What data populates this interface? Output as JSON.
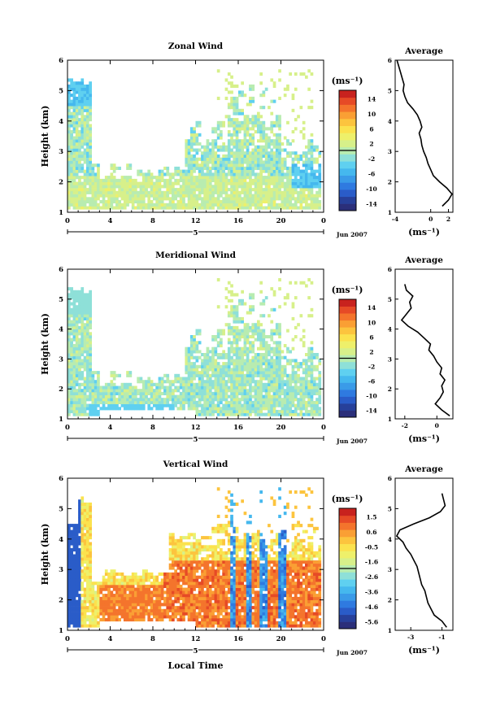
{
  "chart_data": [
    {
      "type": "heatmap",
      "title": "Zonal Wind",
      "ylabel": "Height (km)",
      "ylim": [
        1,
        6
      ],
      "xlim": [
        0,
        24
      ],
      "x_ticks": [
        "0",
        "4",
        "8",
        "12",
        "16",
        "20",
        "0"
      ],
      "y_ticks": [
        "1",
        "2",
        "3",
        "4",
        "5",
        "6"
      ],
      "day_label": "5",
      "date_label": "Jun 2007",
      "colorbar": {
        "unit": "(ms⁻¹)",
        "ticks": [
          "14",
          "10",
          "6",
          "2",
          "-2",
          "-6",
          "-10",
          "-14"
        ],
        "range": [
          -16,
          16
        ]
      },
      "profile": {
        "title": "Average",
        "xlabel": "(ms⁻¹)",
        "x_ticks": [
          "-4",
          "0",
          "2"
        ],
        "xlim": [
          -4,
          2.5
        ],
        "height": [
          1.2,
          1.4,
          1.6,
          1.8,
          2.0,
          2.2,
          2.4,
          2.6,
          2.8,
          3.0,
          3.2,
          3.4,
          3.6,
          3.8,
          4.0,
          4.2,
          4.4,
          4.6,
          4.8,
          5.0,
          5.2,
          5.4,
          5.6,
          5.8,
          6.0
        ],
        "value": [
          1.3,
          2.0,
          2.4,
          1.8,
          1.0,
          0.3,
          0.0,
          -0.3,
          -0.5,
          -0.8,
          -1.0,
          -1.1,
          -1.3,
          -1.0,
          -1.2,
          -1.5,
          -2.0,
          -2.6,
          -2.9,
          -3.1,
          -3.0,
          -3.2,
          -3.4,
          -3.6,
          -3.8
        ]
      },
      "pattern": "zonal"
    },
    {
      "type": "heatmap",
      "title": "Meridional Wind",
      "ylabel": "Height (km)",
      "ylim": [
        1,
        6
      ],
      "xlim": [
        0,
        24
      ],
      "x_ticks": [
        "0",
        "4",
        "8",
        "12",
        "16",
        "20",
        "0"
      ],
      "y_ticks": [
        "1",
        "2",
        "3",
        "4",
        "5",
        "6"
      ],
      "day_label": "5",
      "date_label": "Jun 2007",
      "colorbar": {
        "unit": "(ms⁻¹)",
        "ticks": [
          "14",
          "10",
          "6",
          "2",
          "-2",
          "-6",
          "-10",
          "-14"
        ],
        "range": [
          -16,
          16
        ]
      },
      "profile": {
        "title": "Average",
        "xlabel": "(ms⁻¹)",
        "x_ticks": [
          "-2",
          "0"
        ],
        "xlim": [
          -2.6,
          1.0
        ],
        "height": [
          1.1,
          1.3,
          1.5,
          1.7,
          1.9,
          2.1,
          2.3,
          2.5,
          2.7,
          2.9,
          3.1,
          3.3,
          3.5,
          3.7,
          3.9,
          4.1,
          4.3,
          4.5,
          4.7,
          4.9,
          5.1,
          5.3,
          5.5
        ],
        "value": [
          0.8,
          0.3,
          -0.1,
          0.2,
          0.4,
          0.3,
          0.5,
          0.2,
          0.3,
          0.0,
          -0.2,
          -0.5,
          -0.4,
          -0.8,
          -1.2,
          -1.8,
          -2.2,
          -1.9,
          -1.6,
          -1.7,
          -1.5,
          -1.9,
          -2.0
        ]
      },
      "pattern": "meridional"
    },
    {
      "type": "heatmap",
      "title": "Vertical Wind",
      "ylabel": "Height (km)",
      "xlabel": "Local Time",
      "ylim": [
        1,
        6
      ],
      "xlim": [
        0,
        24
      ],
      "x_ticks": [
        "0",
        "4",
        "8",
        "12",
        "16",
        "20",
        "0"
      ],
      "y_ticks": [
        "1",
        "2",
        "3",
        "4",
        "5",
        "6"
      ],
      "day_label": "5",
      "date_label": "Jun 2007",
      "colorbar": {
        "unit": "(ms⁻¹)",
        "ticks": [
          "1.5",
          "0.6",
          "-0.5",
          "-1.6",
          "-2.6",
          "-3.6",
          "-4.6",
          "-5.6"
        ],
        "range": [
          -6.2,
          2.0
        ]
      },
      "profile": {
        "title": "Average",
        "xlabel": "(ms⁻¹)",
        "x_ticks": [
          "-3",
          "-1"
        ],
        "xlim": [
          -4.0,
          -0.3
        ],
        "height": [
          1.1,
          1.3,
          1.5,
          1.7,
          1.9,
          2.1,
          2.3,
          2.5,
          2.7,
          2.9,
          3.1,
          3.3,
          3.5,
          3.7,
          3.9,
          4.1,
          4.3,
          4.5,
          4.7,
          4.9,
          5.1,
          5.3,
          5.5
        ],
        "value": [
          -0.7,
          -1.0,
          -1.5,
          -1.7,
          -1.9,
          -2.0,
          -2.1,
          -2.3,
          -2.4,
          -2.5,
          -2.6,
          -2.8,
          -3.0,
          -3.3,
          -3.5,
          -3.9,
          -3.7,
          -2.8,
          -1.8,
          -1.1,
          -0.8,
          -0.9,
          -1.0
        ]
      },
      "pattern": "vertical"
    }
  ]
}
